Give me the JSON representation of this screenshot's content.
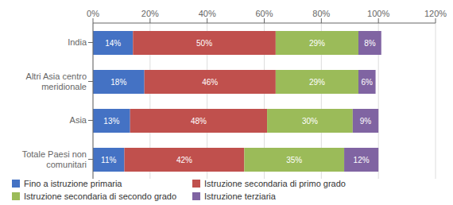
{
  "chart_data": {
    "type": "bar",
    "orientation": "horizontal",
    "stacked": true,
    "data_labels": true,
    "grid": true,
    "legend": "bottom",
    "categories": [
      "India",
      "Altri Asia centro\nmeridionale",
      "Asia",
      "Totale Paesi non\ncomunitari"
    ],
    "series": [
      {
        "name": "Fino a istruzione primaria",
        "color": "#4472C4",
        "values": [
          14,
          18,
          13,
          11
        ],
        "value_labels": [
          "14%",
          "18%",
          "13%",
          "11%"
        ]
      },
      {
        "name": "Istruzione secondaria di primo grado",
        "color": "#C0504D",
        "values": [
          50,
          46,
          48,
          42
        ],
        "value_labels": [
          "50%",
          "46%",
          "48%",
          "42%"
        ]
      },
      {
        "name": "Istruzione secondaria di secondo grado",
        "color": "#9BBB59",
        "values": [
          29,
          29,
          30,
          35
        ],
        "value_labels": [
          "29%",
          "29%",
          "30%",
          "35%"
        ]
      },
      {
        "name": "Istruzione terziaria",
        "color": "#8064A2",
        "values": [
          8,
          6,
          9,
          12
        ],
        "value_labels": [
          "8%",
          "6%",
          "9%",
          "12%"
        ]
      }
    ],
    "xlim": [
      0,
      120
    ],
    "xticks": [
      {
        "value": 0,
        "label": "0%"
      },
      {
        "value": 20,
        "label": "20%"
      },
      {
        "value": 40,
        "label": "40%"
      },
      {
        "value": 60,
        "label": "60%"
      },
      {
        "value": 80,
        "label": "80%"
      },
      {
        "value": 100,
        "label": "100%"
      },
      {
        "value": 120,
        "label": "120%"
      }
    ]
  }
}
